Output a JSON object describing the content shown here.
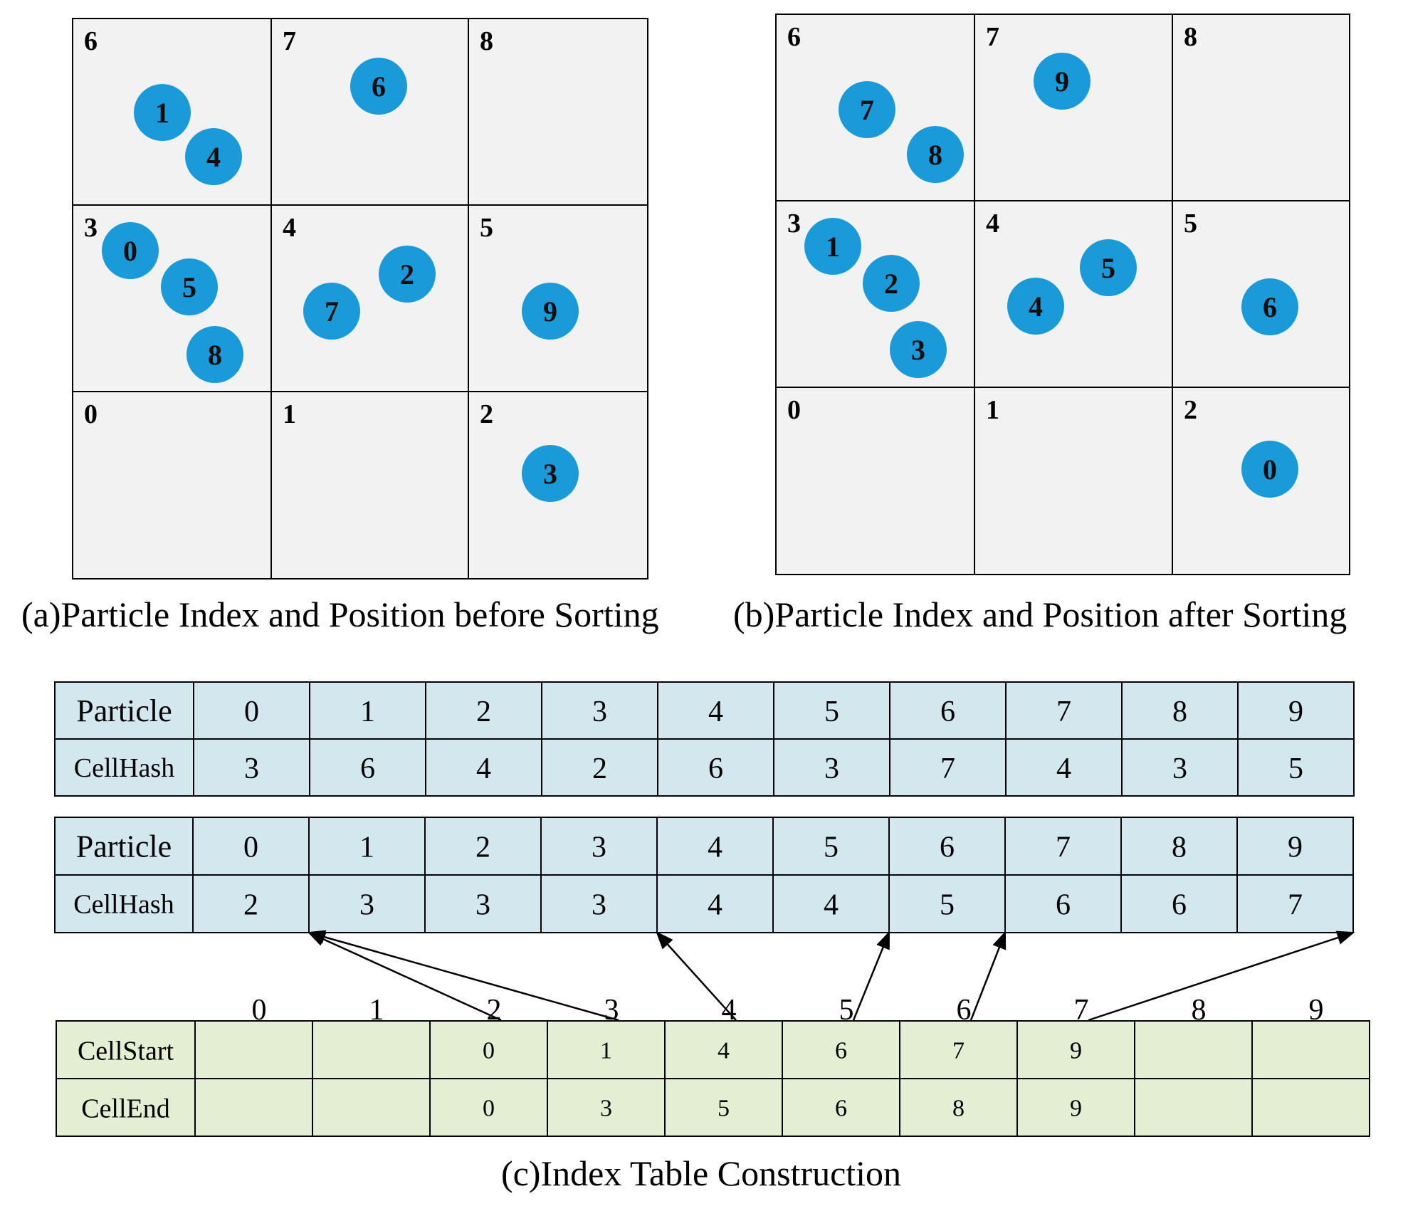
{
  "colors": {
    "grid_fill": "#f2f2f2",
    "particle": "#1b9ad9",
    "table_blue": "#d3e7ef",
    "table_green": "#e4eed2",
    "line": "#000000"
  },
  "panel_a": {
    "caption": "(a)Particle Index and Position before Sorting",
    "cell_labels": [
      "0",
      "1",
      "2",
      "3",
      "4",
      "5",
      "6",
      "7",
      "8"
    ],
    "particles": [
      {
        "id": "1",
        "cell": "6"
      },
      {
        "id": "4",
        "cell": "6"
      },
      {
        "id": "6",
        "cell": "7"
      },
      {
        "id": "0",
        "cell": "3"
      },
      {
        "id": "5",
        "cell": "3"
      },
      {
        "id": "8",
        "cell": "3"
      },
      {
        "id": "7",
        "cell": "4"
      },
      {
        "id": "2",
        "cell": "4"
      },
      {
        "id": "9",
        "cell": "5"
      },
      {
        "id": "3",
        "cell": "2"
      }
    ]
  },
  "panel_b": {
    "caption": "(b)Particle Index and Position after Sorting",
    "cell_labels": [
      "0",
      "1",
      "2",
      "3",
      "4",
      "5",
      "6",
      "7",
      "8"
    ],
    "particles": [
      {
        "id": "7",
        "cell": "6"
      },
      {
        "id": "8",
        "cell": "6"
      },
      {
        "id": "9",
        "cell": "7"
      },
      {
        "id": "1",
        "cell": "3"
      },
      {
        "id": "2",
        "cell": "3"
      },
      {
        "id": "3",
        "cell": "3"
      },
      {
        "id": "4",
        "cell": "4"
      },
      {
        "id": "5",
        "cell": "4"
      },
      {
        "id": "6",
        "cell": "5"
      },
      {
        "id": "0",
        "cell": "2"
      }
    ]
  },
  "table_unsorted": {
    "row1_label": "Particle",
    "row2_label": "CellHash",
    "particle": [
      "0",
      "1",
      "2",
      "3",
      "4",
      "5",
      "6",
      "7",
      "8",
      "9"
    ],
    "cellhash": [
      "3",
      "6",
      "4",
      "2",
      "6",
      "3",
      "7",
      "4",
      "3",
      "5"
    ]
  },
  "table_sorted": {
    "row1_label": "Particle",
    "row2_label": "CellHash",
    "particle": [
      "0",
      "1",
      "2",
      "3",
      "4",
      "5",
      "6",
      "7",
      "8",
      "9"
    ],
    "cellhash": [
      "2",
      "3",
      "3",
      "3",
      "4",
      "4",
      "5",
      "6",
      "6",
      "7"
    ]
  },
  "index_table": {
    "column_indices": [
      "0",
      "1",
      "2",
      "3",
      "4",
      "5",
      "6",
      "7",
      "8",
      "9"
    ],
    "row1_label": "CellStart",
    "row2_label": "CellEnd",
    "cellstart": [
      "",
      "",
      "0",
      "1",
      "4",
      "6",
      "7",
      "9",
      "",
      ""
    ],
    "cellend": [
      "",
      "",
      "0",
      "3",
      "5",
      "6",
      "8",
      "9",
      "",
      ""
    ]
  },
  "arrows": [
    {
      "from_cell": "2",
      "to_particle": "0"
    },
    {
      "from_cell": "3",
      "to_particle": "1"
    },
    {
      "from_cell": "4",
      "to_particle": "4"
    },
    {
      "from_cell": "5",
      "to_particle": "6"
    },
    {
      "from_cell": "6",
      "to_particle": "7"
    },
    {
      "from_cell": "7",
      "to_particle": "9"
    }
  ],
  "caption_c": "(c)Index Table Construction"
}
